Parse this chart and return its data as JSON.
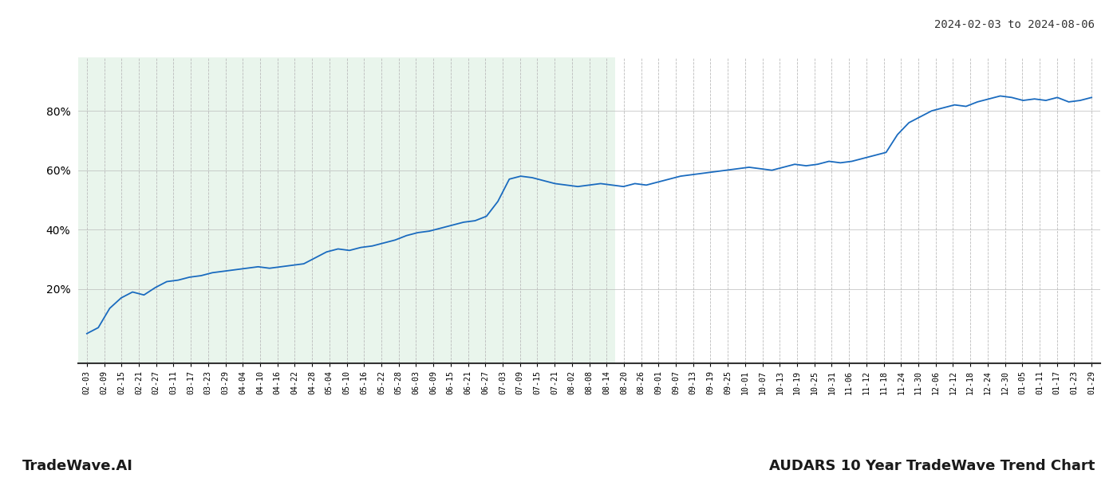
{
  "title_top_right": "2024-02-03 to 2024-08-06",
  "title_bottom_left": "TradeWave.AI",
  "title_bottom_right": "AUDARS 10 Year TradeWave Trend Chart",
  "background_color": "#ffffff",
  "line_color": "#1a6bbf",
  "shade_color": "#d8eedd",
  "shade_alpha": 0.55,
  "y_ticks": [
    0,
    20,
    40,
    60,
    80
  ],
  "y_tick_labels": [
    "",
    "20%",
    "40%",
    "60%",
    "80%"
  ],
  "ylim": [
    -5,
    98
  ],
  "grid_color": "#bbbbbb",
  "x_labels": [
    "02-03",
    "02-09",
    "02-15",
    "02-21",
    "02-27",
    "03-11",
    "03-17",
    "03-23",
    "03-29",
    "04-04",
    "04-10",
    "04-16",
    "04-22",
    "04-28",
    "05-04",
    "05-10",
    "05-16",
    "05-22",
    "05-28",
    "06-03",
    "06-09",
    "06-15",
    "06-21",
    "06-27",
    "07-03",
    "07-09",
    "07-15",
    "07-21",
    "08-02",
    "08-08",
    "08-14",
    "08-20",
    "08-26",
    "09-01",
    "09-07",
    "09-13",
    "09-19",
    "09-25",
    "10-01",
    "10-07",
    "10-13",
    "10-19",
    "10-25",
    "10-31",
    "11-06",
    "11-12",
    "11-18",
    "11-24",
    "11-30",
    "12-06",
    "12-12",
    "12-18",
    "12-24",
    "12-30",
    "01-05",
    "01-11",
    "01-17",
    "01-23",
    "01-29"
  ],
  "shade_end_label": "08-14",
  "trend_values": [
    5.0,
    7.0,
    13.5,
    17.0,
    19.0,
    18.0,
    20.5,
    22.5,
    23.0,
    24.0,
    24.5,
    25.5,
    26.0,
    26.5,
    27.0,
    27.5,
    27.0,
    27.5,
    28.0,
    28.5,
    30.5,
    32.5,
    33.5,
    33.0,
    34.0,
    34.5,
    35.5,
    36.5,
    38.0,
    39.0,
    39.5,
    40.5,
    41.5,
    42.5,
    43.0,
    44.5,
    49.5,
    57.0,
    58.0,
    57.5,
    56.5,
    55.5,
    55.0,
    54.5,
    55.0,
    55.5,
    55.0,
    54.5,
    55.5,
    55.0,
    56.0,
    57.0,
    58.0,
    58.5,
    59.0,
    59.5,
    60.0,
    60.5,
    61.0,
    60.5,
    60.0,
    61.0,
    62.0,
    61.5,
    62.0,
    63.0,
    62.5,
    63.0,
    64.0,
    65.0,
    66.0,
    72.0,
    76.0,
    78.0,
    80.0,
    81.0,
    82.0,
    81.5,
    83.0,
    84.0,
    85.0,
    84.5,
    83.5,
    84.0,
    83.5,
    84.5,
    83.0,
    83.5,
    84.5
  ],
  "line_width": 1.3
}
